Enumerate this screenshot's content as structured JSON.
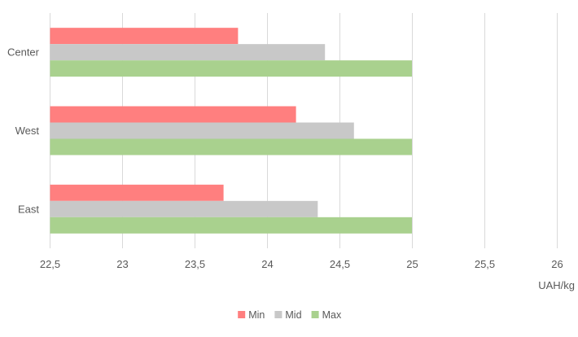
{
  "chart_data": {
    "type": "bar",
    "orientation": "horizontal",
    "categories": [
      "Center",
      "West",
      "East"
    ],
    "series": [
      {
        "name": "Min",
        "color": "#ff7f7f",
        "values": [
          23.8,
          24.2,
          23.7
        ]
      },
      {
        "name": "Mid",
        "color": "#c8c8c8",
        "values": [
          24.4,
          24.6,
          24.35
        ]
      },
      {
        "name": "Max",
        "color": "#a9d18e",
        "values": [
          25.0,
          25.0,
          25.0
        ]
      }
    ],
    "xlim": [
      22.5,
      26
    ],
    "x_ticks": [
      22.5,
      23,
      23.5,
      24,
      24.5,
      25,
      25.5,
      26
    ],
    "x_tick_labels": [
      "22,5",
      "23",
      "23,5",
      "24",
      "24,5",
      "25",
      "25,5",
      "26"
    ],
    "xlabel": "UAH/kg",
    "ylabel": "",
    "title": "",
    "grid": "vertical",
    "legend": "bottom"
  }
}
